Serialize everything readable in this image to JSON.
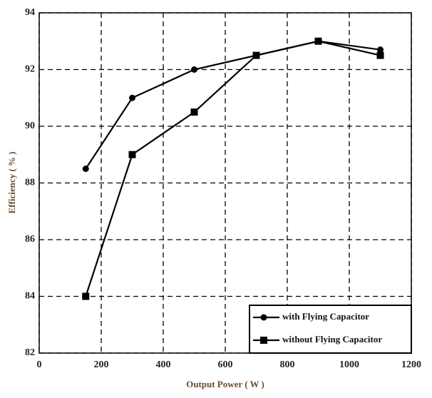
{
  "chart_data": {
    "type": "line",
    "x_label": "Output Power ( W )",
    "y_label": "Efficiency ( % )",
    "x": [
      150,
      300,
      500,
      700,
      900,
      1100
    ],
    "series": [
      {
        "name": "with Flying Capacitor",
        "color": "#000000",
        "marker": "circle",
        "values": [
          88.5,
          91,
          92,
          92.5,
          93,
          92.7
        ]
      },
      {
        "name": "without Flying Capacitor",
        "color": "#000000",
        "marker": "square",
        "values": [
          84,
          89,
          90.5,
          92.5,
          93,
          92.5
        ]
      }
    ],
    "xlim": [
      0,
      1200
    ],
    "xticks": [
      0,
      200,
      400,
      600,
      800,
      1000,
      1200
    ],
    "ylim": [
      82,
      94
    ],
    "yticks": [
      82,
      84,
      86,
      88,
      90,
      92,
      94
    ],
    "grid": true,
    "legend": "lower right"
  }
}
